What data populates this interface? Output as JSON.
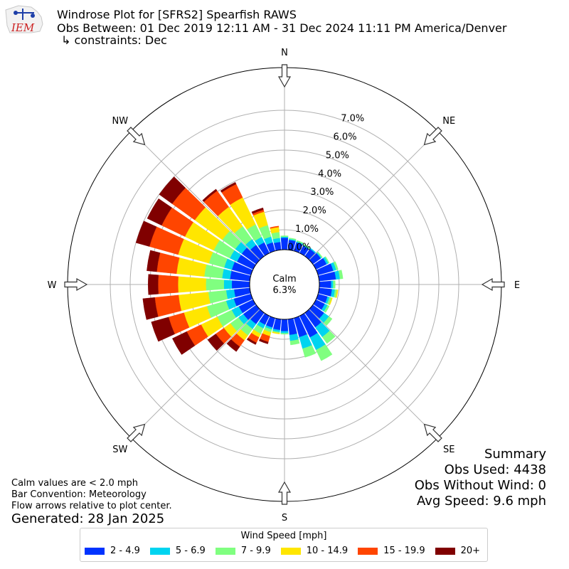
{
  "header": {
    "line1": "Windrose Plot for [SFRS2] Spearfish RAWS",
    "line2": "Obs Between: 01 Dec 2019 12:11 AM - 31 Dec 2024 11:11 PM America/Denver",
    "line3": "↳ constraints: Dec",
    "logo_text": "IEM"
  },
  "notes": {
    "calm_note": "Calm values are < 2.0 mph",
    "bar_convention": "Bar Convention: Meteorology",
    "flow_note": "Flow arrows relative to plot center.",
    "generated": "Generated: 28 Jan 2025"
  },
  "summary": {
    "title": "Summary",
    "obs_used": "Obs Used: 4438",
    "obs_without_wind": "Obs Without Wind: 0",
    "avg_speed": "Avg Speed: 9.6 mph"
  },
  "legend": {
    "title": "Wind Speed [mph]",
    "items": [
      {
        "label": "2 - 4.9",
        "color": "#0033ff"
      },
      {
        "label": "5 - 6.9",
        "color": "#00d4f0"
      },
      {
        "label": "7 - 9.9",
        "color": "#80ff80"
      },
      {
        "label": "10 - 14.9",
        "color": "#ffe600"
      },
      {
        "label": "15 - 19.9",
        "color": "#ff4500"
      },
      {
        "label": "20+",
        "color": "#800000"
      }
    ]
  },
  "chart_data": {
    "type": "windrose",
    "calm": {
      "label": "Calm",
      "value": "6.3%"
    },
    "compass_labels": [
      "N",
      "NE",
      "E",
      "SE",
      "S",
      "SW",
      "W",
      "NW"
    ],
    "radial_ticks": [
      "0.0%",
      "1.0%",
      "2.0%",
      "3.0%",
      "4.0%",
      "5.0%",
      "6.0%",
      "7.0%"
    ],
    "radial_max": 7.8,
    "speed_bins": [
      "2 - 4.9",
      "5 - 6.9",
      "7 - 9.9",
      "10 - 14.9",
      "15 - 19.9",
      "20+"
    ],
    "directions_deg": [
      0,
      10,
      20,
      30,
      40,
      50,
      60,
      70,
      80,
      90,
      100,
      110,
      120,
      130,
      140,
      150,
      160,
      170,
      180,
      190,
      200,
      210,
      220,
      230,
      240,
      250,
      260,
      270,
      280,
      290,
      300,
      310,
      320,
      330,
      340,
      350
    ],
    "values": [
      [
        0.6,
        0.05,
        0.05,
        0.0,
        0.0,
        0.0
      ],
      [
        0.5,
        0.05,
        0.05,
        0.0,
        0.0,
        0.0
      ],
      [
        0.45,
        0.05,
        0.05,
        0.0,
        0.0,
        0.0
      ],
      [
        0.4,
        0.05,
        0.05,
        0.0,
        0.0,
        0.0
      ],
      [
        0.45,
        0.05,
        0.0,
        0.0,
        0.0,
        0.0
      ],
      [
        0.5,
        0.05,
        0.05,
        0.0,
        0.0,
        0.0
      ],
      [
        0.6,
        0.1,
        0.05,
        0.0,
        0.0,
        0.0
      ],
      [
        0.8,
        0.15,
        0.1,
        0.0,
        0.0,
        0.0
      ],
      [
        0.85,
        0.2,
        0.15,
        0.0,
        0.0,
        0.0
      ],
      [
        0.6,
        0.1,
        0.1,
        0.0,
        0.0,
        0.0
      ],
      [
        0.65,
        0.15,
        0.1,
        0.05,
        0.0,
        0.0
      ],
      [
        0.5,
        0.1,
        0.1,
        0.05,
        0.0,
        0.0
      ],
      [
        0.5,
        0.15,
        0.1,
        0.0,
        0.0,
        0.0
      ],
      [
        0.7,
        0.3,
        0.2,
        0.0,
        0.0,
        0.0
      ],
      [
        0.9,
        0.6,
        0.4,
        0.0,
        0.0,
        0.0
      ],
      [
        1.2,
        0.7,
        0.6,
        0.0,
        0.0,
        0.0
      ],
      [
        1.0,
        0.6,
        0.45,
        0.0,
        0.0,
        0.0
      ],
      [
        0.8,
        0.3,
        0.2,
        0.0,
        0.0,
        0.0
      ],
      [
        0.6,
        0.1,
        0.05,
        0.0,
        0.0,
        0.0
      ],
      [
        0.55,
        0.1,
        0.05,
        0.05,
        0.0,
        0.0
      ],
      [
        0.5,
        0.1,
        0.15,
        0.2,
        0.3,
        0.1
      ],
      [
        0.5,
        0.2,
        0.3,
        0.2,
        0.3,
        0.1
      ],
      [
        0.7,
        0.3,
        0.4,
        0.3,
        0.4,
        0.3
      ],
      [
        0.8,
        0.3,
        0.5,
        0.4,
        0.5,
        0.5
      ],
      [
        0.8,
        0.4,
        0.8,
        0.9,
        0.8,
        0.8
      ],
      [
        0.9,
        0.4,
        1.0,
        1.2,
        0.8,
        0.9
      ],
      [
        0.8,
        0.4,
        0.9,
        1.5,
        1.2,
        0.6
      ],
      [
        0.9,
        0.4,
        0.9,
        1.4,
        1.0,
        0.5
      ],
      [
        1.0,
        0.4,
        0.9,
        1.4,
        1.0,
        0.5
      ],
      [
        1.0,
        0.4,
        0.8,
        1.6,
        1.5,
        0.7
      ],
      [
        0.9,
        0.4,
        0.9,
        1.6,
        1.3,
        0.8
      ],
      [
        0.9,
        0.4,
        0.8,
        1.7,
        1.4,
        0.8
      ],
      [
        0.7,
        0.35,
        0.8,
        1.2,
        1.0,
        0.1
      ],
      [
        0.6,
        0.3,
        0.7,
        1.5,
        0.75,
        0.1
      ],
      [
        0.45,
        0.3,
        0.6,
        0.7,
        0.1,
        0.1
      ],
      [
        0.4,
        0.2,
        0.3,
        0.25,
        0.05,
        0.0
      ]
    ]
  }
}
